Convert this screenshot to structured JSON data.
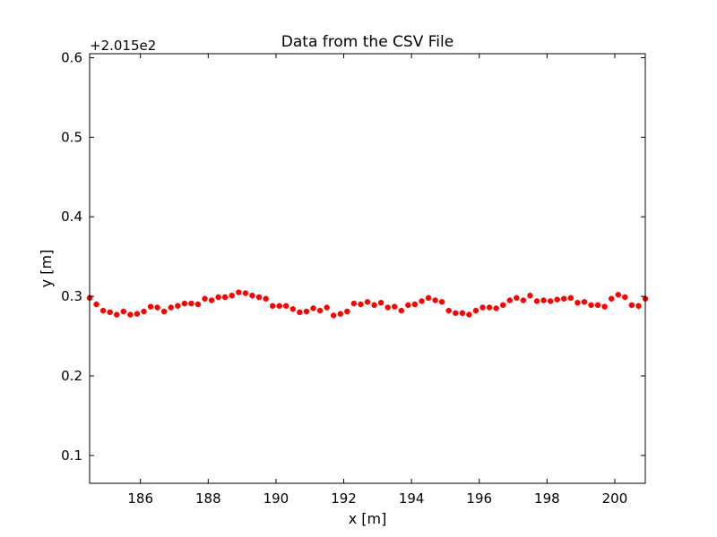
{
  "chart_data": {
    "type": "scatter",
    "title": "Data from the CSV File",
    "xlabel": "x [m]",
    "ylabel": "y [m]",
    "offset_label": "+2.015e2",
    "xlim": [
      184.5,
      200.9
    ],
    "ylim": [
      0.065,
      0.605
    ],
    "x_ticks": [
      186,
      188,
      190,
      192,
      194,
      196,
      198,
      200
    ],
    "x_tick_labels": [
      "186",
      "188",
      "190",
      "192",
      "194",
      "196",
      "198",
      "200"
    ],
    "y_ticks": [
      0.1,
      0.2,
      0.3,
      0.4,
      0.5,
      0.6
    ],
    "y_tick_labels": [
      "0.1",
      "0.2",
      "0.3",
      "0.4",
      "0.5",
      "0.6"
    ],
    "grid": false,
    "marker_color": "#ff0000",
    "series": [
      {
        "name": "points",
        "x": [
          184.5,
          184.7,
          184.9,
          185.1,
          185.3,
          185.5,
          185.7,
          185.9,
          186.1,
          186.3,
          186.5,
          186.7,
          186.9,
          187.1,
          187.3,
          187.5,
          187.7,
          187.9,
          188.1,
          188.3,
          188.5,
          188.7,
          188.9,
          189.1,
          189.3,
          189.5,
          189.7,
          189.9,
          190.1,
          190.3,
          190.5,
          190.7,
          190.9,
          191.1,
          191.3,
          191.5,
          191.7,
          191.9,
          192.1,
          192.3,
          192.5,
          192.7,
          192.9,
          193.1,
          193.3,
          193.5,
          193.7,
          193.9,
          194.1,
          194.3,
          194.5,
          194.7,
          194.9,
          195.1,
          195.3,
          195.5,
          195.7,
          195.9,
          196.1,
          196.3,
          196.5,
          196.7,
          196.9,
          197.1,
          197.3,
          197.5,
          197.7,
          197.9,
          198.1,
          198.3,
          198.5,
          198.7,
          198.9,
          199.1,
          199.3,
          199.5,
          199.7,
          199.9,
          200.1,
          200.3,
          200.5,
          200.7,
          200.9
        ],
        "y": [
          0.298,
          0.29,
          0.282,
          0.28,
          0.277,
          0.281,
          0.277,
          0.278,
          0.281,
          0.287,
          0.286,
          0.281,
          0.286,
          0.288,
          0.291,
          0.291,
          0.29,
          0.297,
          0.295,
          0.299,
          0.299,
          0.301,
          0.305,
          0.304,
          0.301,
          0.299,
          0.297,
          0.288,
          0.288,
          0.288,
          0.284,
          0.28,
          0.281,
          0.285,
          0.282,
          0.286,
          0.276,
          0.278,
          0.281,
          0.291,
          0.29,
          0.293,
          0.289,
          0.292,
          0.286,
          0.287,
          0.282,
          0.289,
          0.29,
          0.294,
          0.298,
          0.295,
          0.293,
          0.282,
          0.279,
          0.279,
          0.277,
          0.282,
          0.286,
          0.286,
          0.285,
          0.289,
          0.295,
          0.298,
          0.295,
          0.301,
          0.294,
          0.295,
          0.294,
          0.296,
          0.297,
          0.298,
          0.292,
          0.293,
          0.289,
          0.289,
          0.287,
          0.297,
          0.302,
          0.299,
          0.289,
          0.288,
          0.297
        ]
      }
    ]
  }
}
